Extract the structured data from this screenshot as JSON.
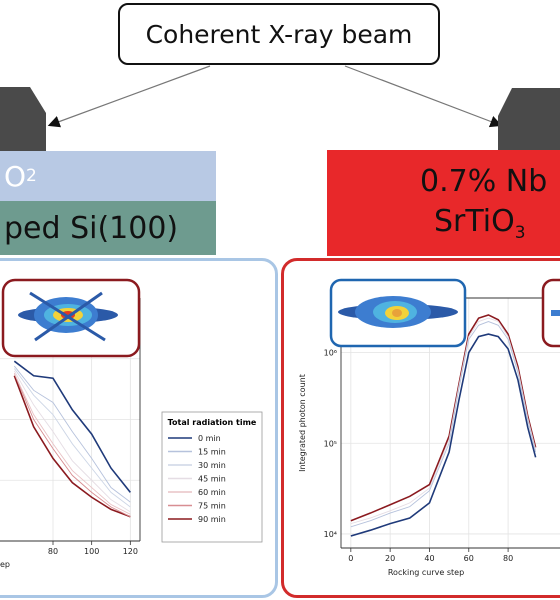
{
  "beam": {
    "label": "Coherent X-ray beam"
  },
  "left_sample": {
    "top_layer": "O",
    "top_layer_sub": "2",
    "bottom_layer": "ped Si(100)"
  },
  "right_sample": {
    "line1": "0.7% Nb",
    "line2": "SrTiO",
    "line2_sub": "3"
  },
  "colors": {
    "left_panel_border": "#a9c6e5",
    "right_panel_border": "#d22b2b",
    "red_layer": "#e8282a",
    "blue_layer": "#b8c9e4",
    "green_layer": "#6e9b8f"
  },
  "legend": {
    "title": "Total radiation time",
    "entries": [
      "0 min",
      "15 min",
      "30 min",
      "45 min",
      "60 min",
      "75 min",
      "90 min"
    ],
    "colors": [
      "#1f3a7a",
      "#b6c2dc",
      "#cdd6e6",
      "#e5dde4",
      "#e9c3c6",
      "#d88e92",
      "#8b1a1f"
    ]
  },
  "chart_data": [
    {
      "type": "line",
      "xlabel": "ep",
      "ylabel": "",
      "x_ticks": [
        80,
        100,
        120
      ],
      "x": [
        60,
        70,
        80,
        90,
        100,
        110,
        120
      ],
      "series": [
        {
          "name": "0 min",
          "values": [
            0.74,
            0.68,
            0.67,
            0.54,
            0.44,
            0.3,
            0.2
          ]
        },
        {
          "name": "15 min",
          "values": [
            0.72,
            0.62,
            0.57,
            0.45,
            0.34,
            0.22,
            0.16
          ]
        },
        {
          "name": "30 min",
          "values": [
            0.71,
            0.6,
            0.52,
            0.4,
            0.3,
            0.2,
            0.14
          ]
        },
        {
          "name": "45 min",
          "values": [
            0.7,
            0.56,
            0.45,
            0.33,
            0.25,
            0.17,
            0.12
          ]
        },
        {
          "name": "60 min",
          "values": [
            0.69,
            0.52,
            0.4,
            0.29,
            0.22,
            0.15,
            0.11
          ]
        },
        {
          "name": "75 min",
          "values": [
            0.69,
            0.5,
            0.38,
            0.27,
            0.2,
            0.14,
            0.1
          ]
        },
        {
          "name": "90 min",
          "values": [
            0.68,
            0.47,
            0.34,
            0.24,
            0.18,
            0.13,
            0.1
          ]
        }
      ]
    },
    {
      "type": "line",
      "xlabel": "Rocking curve step",
      "ylabel": "Integrated photon count",
      "yscale": "log",
      "ylim": [
        7000,
        4000000
      ],
      "y_ticks": [
        "10⁴",
        "10⁵",
        "10⁶"
      ],
      "x_ticks": [
        0,
        20,
        40,
        60,
        80
      ],
      "x": [
        0,
        10,
        20,
        30,
        40,
        50,
        55,
        60,
        65,
        70,
        75,
        80,
        85,
        90,
        94
      ],
      "series": [
        {
          "name": "0 min",
          "values": [
            9500,
            11000,
            13000,
            15000,
            22000,
            80000,
            300000,
            1000000,
            1500000,
            1600000,
            1500000,
            1100000,
            500000,
            150000,
            70000
          ]
        },
        {
          "name": "15 min",
          "values": [
            12000,
            14000,
            17000,
            20000,
            30000,
            100000,
            400000,
            1400000,
            2000000,
            2200000,
            2000000,
            1400000,
            600000,
            180000,
            80000
          ]
        },
        {
          "name": "45 min",
          "values": [
            13000,
            15000,
            18000,
            22000,
            32000,
            110000,
            430000,
            1500000,
            2200000,
            2400000,
            2200000,
            1500000,
            650000,
            190000,
            85000
          ]
        },
        {
          "name": "90 min",
          "values": [
            14000,
            17000,
            21000,
            26000,
            35000,
            120000,
            450000,
            1600000,
            2400000,
            2600000,
            2300000,
            1600000,
            700000,
            200000,
            90000
          ]
        }
      ]
    }
  ]
}
